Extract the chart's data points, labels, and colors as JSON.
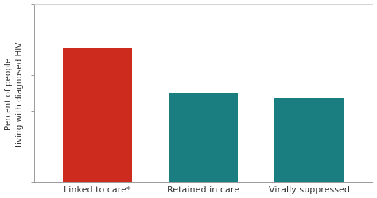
{
  "categories": [
    "Linked to care*",
    "Retained in care",
    "Virally suppressed"
  ],
  "values": [
    75,
    50,
    47
  ],
  "bar_colors": [
    "#cc2b1d",
    "#1a7d80",
    "#1a7d80"
  ],
  "ylabel": "Percent of people\nliving with diagnosed HIV",
  "ylim": [
    0,
    100
  ],
  "yticks": [
    0,
    20,
    40,
    60,
    80,
    100
  ],
  "background_color": "#ffffff",
  "ylabel_fontsize": 7.5,
  "xtick_fontsize": 8,
  "bar_width": 0.65,
  "figsize": [
    4.74,
    2.51
  ],
  "dpi": 100
}
